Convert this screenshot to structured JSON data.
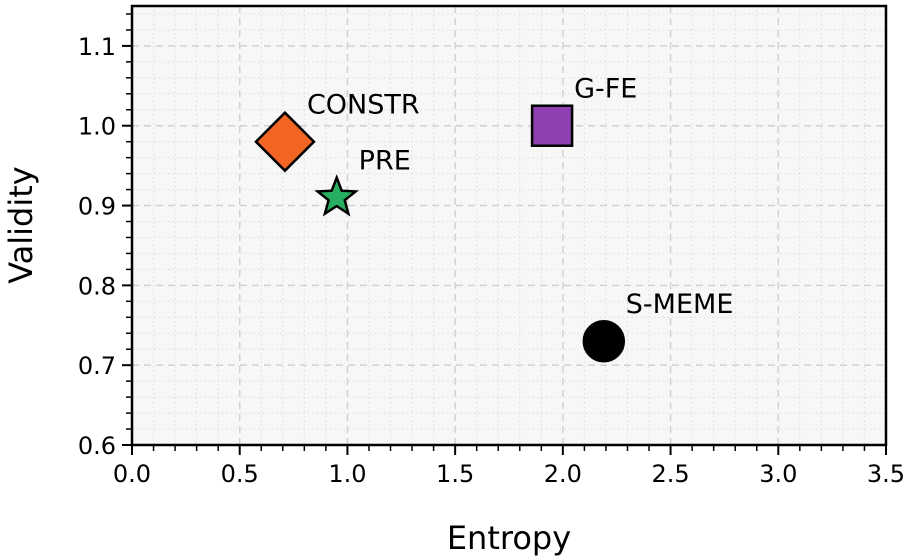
{
  "chart_data": {
    "type": "scatter",
    "xlabel": "Entropy",
    "ylabel": "Validity",
    "xlim": [
      0.0,
      3.5
    ],
    "ylim": [
      0.6,
      1.15
    ],
    "xticks": [
      "0.0",
      "0.5",
      "1.0",
      "1.5",
      "2.0",
      "2.5",
      "3.0",
      "3.5"
    ],
    "yticks": [
      "0.6",
      "0.7",
      "0.8",
      "0.9",
      "1.0",
      "1.1"
    ],
    "grid": true,
    "points": [
      {
        "label": "CONSTR",
        "x": 0.71,
        "y": 0.98,
        "marker": "diamond",
        "color": "#f26522"
      },
      {
        "label": "PRE",
        "x": 0.95,
        "y": 0.91,
        "marker": "star",
        "color": "#27ae60"
      },
      {
        "label": "G-FE",
        "x": 1.95,
        "y": 1.0,
        "marker": "square",
        "color": "#8e3fb0"
      },
      {
        "label": "S-MEME",
        "x": 2.19,
        "y": 0.73,
        "marker": "circle",
        "color": "#000000"
      }
    ]
  }
}
